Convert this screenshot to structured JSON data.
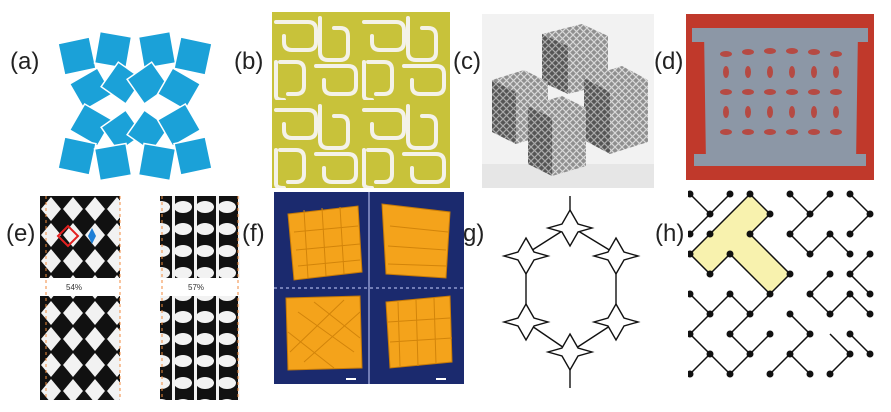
{
  "labels": {
    "a": "(a)",
    "b": "(b)",
    "c": "(c)",
    "d": "(d)",
    "e": "(e)",
    "f": "(f)",
    "g": "(g)",
    "h": "(h)"
  },
  "panel_e": {
    "left_percent": "54%",
    "right_percent": "57%"
  },
  "colors": {
    "square_blue": "#1ba1d8",
    "mustard": "#c8c23a",
    "red_background": "#c0392b",
    "grey_sheet": "#8c97a6",
    "origami_orange": "#f4a31b",
    "dark_blue": "#1b2a6e",
    "highlight_yellow": "#f8f2ae"
  }
}
